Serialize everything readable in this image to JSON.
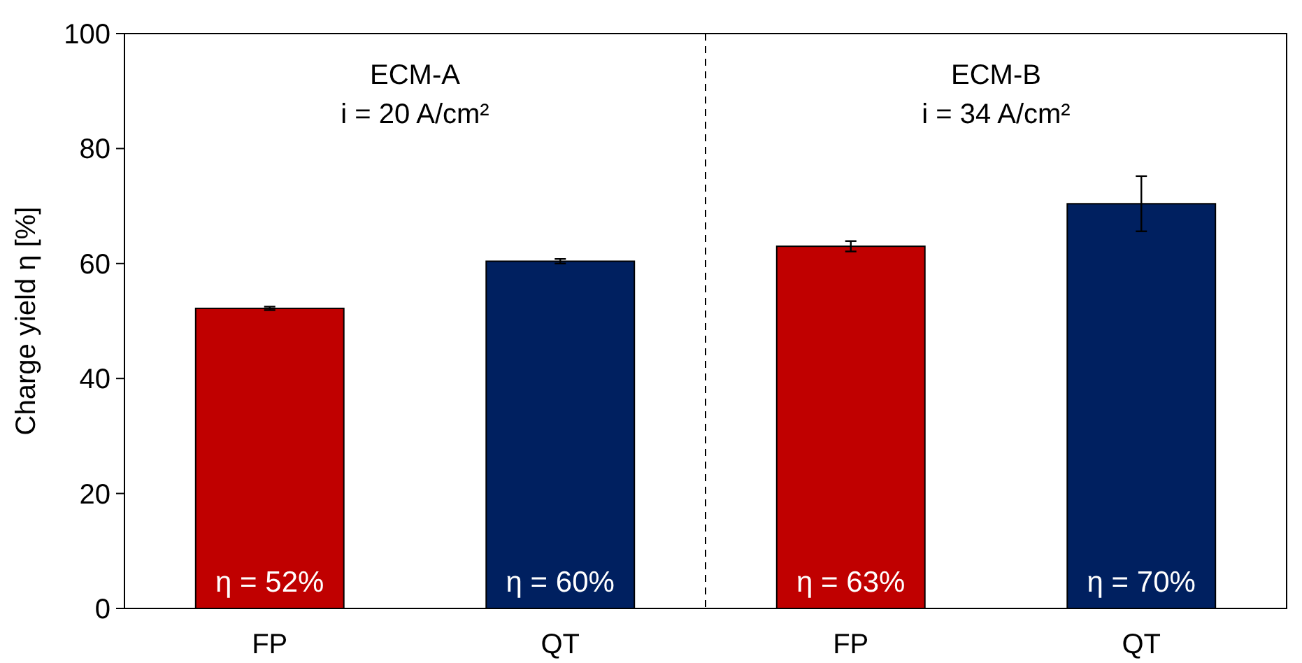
{
  "chart_data": {
    "type": "bar",
    "ylabel": "Charge yield η [%]",
    "categories": [
      "FP",
      "QT",
      "FP",
      "QT"
    ],
    "values": [
      52.2,
      60.4,
      63.0,
      70.4
    ],
    "colors": [
      "#c00000",
      "#002060",
      "#c00000",
      "#002060"
    ],
    "errors": [
      0.3,
      0.4,
      0.9,
      4.8
    ],
    "value_labels": [
      "η = 52%",
      "η = 60%",
      "η = 63%",
      "η = 70%"
    ],
    "ylim": [
      0,
      100
    ],
    "yticks": [
      0,
      20,
      40,
      60,
      80,
      100
    ],
    "grid": false,
    "annotations": [
      "ECM-A",
      "i = 20 A/cm²",
      "ECM-B",
      "i = 34 A/cm²"
    ]
  }
}
